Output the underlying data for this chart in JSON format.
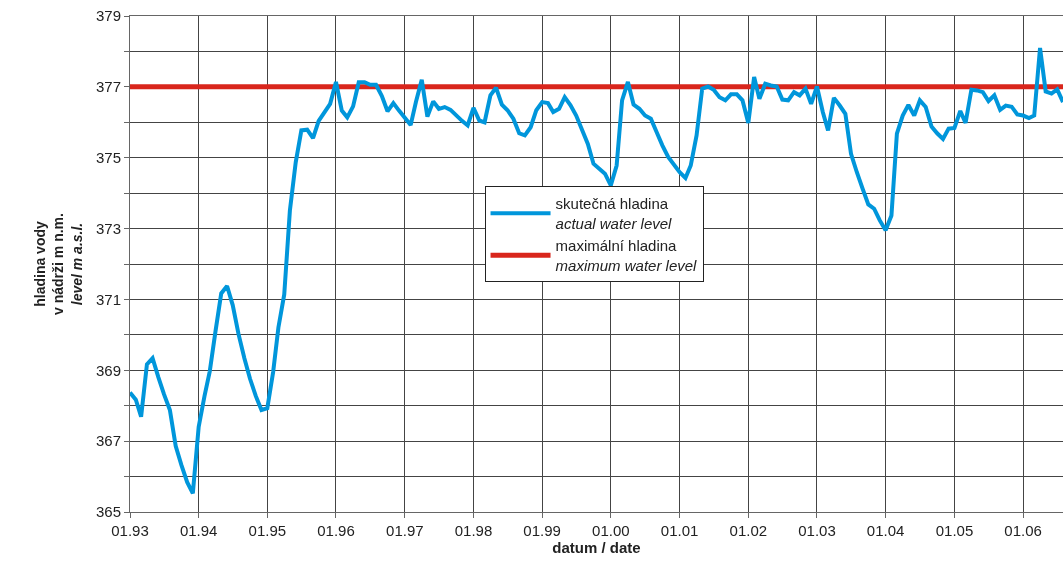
{
  "chart_data": {
    "type": "line",
    "xlabel": "datum / date",
    "ylabel": "hladina vody\nv nádrži m n.m.\nlevel m a.s.l.",
    "x": [
      "1993-01",
      "1993-02",
      "1993-03",
      "1993-04",
      "1993-05",
      "1993-06",
      "1993-07",
      "1993-08",
      "1993-09",
      "1993-10",
      "1993-11",
      "1993-12",
      "1994-01",
      "1994-02",
      "1994-03",
      "1994-04",
      "1994-05",
      "1994-06",
      "1994-07",
      "1994-08",
      "1994-09",
      "1994-10",
      "1994-11",
      "1994-12",
      "1995-01",
      "1995-02",
      "1995-03",
      "1995-04",
      "1995-05",
      "1995-06",
      "1995-07",
      "1995-08",
      "1995-09",
      "1995-10",
      "1995-12",
      "1996-01",
      "1996-02",
      "1996-03",
      "1996-04",
      "1996-05",
      "1996-06",
      "1996-07",
      "1996-08",
      "1996-09",
      "1996-10",
      "1996-11",
      "1996-12",
      "1997-02",
      "1997-03",
      "1997-04",
      "1997-05",
      "1997-06",
      "1997-07",
      "1997-08",
      "1997-09",
      "1997-11",
      "1997-12",
      "1998-01",
      "1998-02",
      "1998-03",
      "1998-04",
      "1998-05",
      "1998-06",
      "1998-07",
      "1998-08",
      "1998-09",
      "1998-10",
      "1998-11",
      "1998-12",
      "1999-01",
      "1999-02",
      "1999-03",
      "1999-04",
      "1999-05",
      "1999-06",
      "1999-07",
      "1999-09",
      "1999-10",
      "1999-12",
      "2000-01",
      "2000-02",
      "2000-03",
      "2000-04",
      "2000-05",
      "2000-06",
      "2000-07",
      "2000-08",
      "2000-09",
      "2000-10",
      "2000-11",
      "2001-01",
      "2001-02",
      "2001-03",
      "2001-04",
      "2001-05",
      "2001-06",
      "2001-07",
      "2001-08",
      "2001-09",
      "2001-10",
      "2001-11",
      "2001-12",
      "2002-01",
      "2002-02",
      "2002-03",
      "2002-04",
      "2002-05",
      "2002-06",
      "2002-07",
      "2002-08",
      "2002-09",
      "2002-10",
      "2002-11",
      "2002-12",
      "2003-01",
      "2003-02",
      "2003-03",
      "2003-04",
      "2003-05",
      "2003-06",
      "2003-07",
      "2003-08",
      "2003-09",
      "2003-10",
      "2003-11",
      "2003-12",
      "2004-01",
      "2004-02",
      "2004-03",
      "2004-04",
      "2004-05",
      "2004-06",
      "2004-07",
      "2004-08",
      "2004-09",
      "2004-10",
      "2004-11",
      "2004-12",
      "2005-01",
      "2005-02",
      "2005-03",
      "2005-04",
      "2005-05",
      "2005-06",
      "2005-07",
      "2005-08",
      "2005-09",
      "2005-10",
      "2005-11",
      "2005-12",
      "2006-01",
      "2006-02",
      "2006-03",
      "2006-04",
      "2006-05",
      "2006-06",
      "2006-07",
      "2006-08"
    ],
    "series": [
      {
        "name": "skutečná hladina\nactual water level",
        "color": "#0096db",
        "values": [
          368.37,
          368.17,
          367.69,
          369.17,
          369.34,
          368.8,
          368.32,
          367.88,
          366.86,
          366.33,
          365.84,
          365.53,
          367.4,
          368.27,
          368.97,
          370.12,
          371.17,
          371.38,
          370.84,
          370.02,
          369.34,
          368.76,
          368.27,
          367.88,
          367.93,
          368.95,
          370.21,
          371.14,
          373.51,
          374.87,
          375.77,
          375.79,
          375.55,
          376.04,
          376.52,
          377.14,
          376.33,
          376.14,
          376.45,
          377.13,
          377.13,
          377.06,
          377.06,
          376.74,
          376.31,
          376.54,
          376.33,
          375.92,
          376.57,
          377.2,
          376.16,
          376.59,
          376.38,
          376.43,
          376.35,
          376.04,
          375.91,
          376.41,
          376.05,
          376.0,
          376.76,
          376.98,
          376.5,
          376.34,
          376.1,
          375.69,
          375.63,
          375.86,
          376.34,
          376.57,
          376.54,
          376.29,
          376.38,
          376.71,
          376.48,
          376.19,
          375.39,
          374.83,
          374.55,
          374.22,
          374.78,
          376.62,
          377.14,
          376.5,
          376.38,
          376.19,
          376.1,
          375.72,
          375.35,
          375.02,
          374.59,
          374.43,
          374.78,
          375.63,
          376.95,
          377.01,
          376.92,
          376.71,
          376.62,
          376.79,
          376.79,
          376.62,
          375.98,
          377.28,
          376.66,
          377.09,
          377.04,
          377.01,
          376.64,
          376.62,
          376.85,
          376.76,
          376.95,
          376.52,
          377.01,
          376.29,
          375.77,
          376.69,
          376.48,
          376.24,
          375.11,
          374.59,
          374.12,
          373.68,
          373.56,
          373.23,
          372.95,
          373.37,
          375.68,
          376.19,
          376.49,
          376.19,
          376.62,
          376.43,
          375.88,
          375.69,
          375.53,
          375.82,
          375.84,
          376.32,
          375.98,
          376.92,
          376.9,
          376.85,
          376.6,
          376.76,
          376.35,
          376.47,
          376.44,
          376.22,
          376.19,
          376.12,
          376.19,
          378.1,
          376.87,
          376.81,
          376.93,
          376.57
        ]
      }
    ],
    "ref_lines": [
      {
        "axis": "y",
        "value": 377,
        "label": "maximální hladina\nmaximum water level",
        "color": "#d9261c"
      }
    ],
    "xlim": [
      "1993-01",
      "2006-08"
    ],
    "xticks": [
      {
        "value": "1993-01",
        "label": "01.93"
      },
      {
        "value": "1994-01",
        "label": "01.94"
      },
      {
        "value": "1995-01",
        "label": "01.95"
      },
      {
        "value": "1996-01",
        "label": "01.96"
      },
      {
        "value": "1997-01",
        "label": "01.97"
      },
      {
        "value": "1998-01",
        "label": "01.98"
      },
      {
        "value": "1999-01",
        "label": "01.99"
      },
      {
        "value": "2000-01",
        "label": "01.00"
      },
      {
        "value": "2001-01",
        "label": "01.01"
      },
      {
        "value": "2002-01",
        "label": "01.02"
      },
      {
        "value": "2003-01",
        "label": "01.03"
      },
      {
        "value": "2004-01",
        "label": "01.04"
      },
      {
        "value": "2005-01",
        "label": "01.05"
      },
      {
        "value": "2006-01",
        "label": "01.06"
      }
    ],
    "ylim": [
      365,
      379
    ],
    "yticks": [
      365,
      {
        "value": 366,
        "label": null
      },
      367,
      {
        "value": 368,
        "label": null
      },
      369,
      {
        "value": 370,
        "label": null
      },
      371,
      {
        "value": 372,
        "label": null
      },
      373,
      {
        "value": 374,
        "label": null
      },
      375,
      {
        "value": 376,
        "label": null
      },
      377,
      {
        "value": 378,
        "label": null
      },
      379
    ],
    "grid": true,
    "legend": "center",
    "marker": "none",
    "line_style": "solid"
  }
}
